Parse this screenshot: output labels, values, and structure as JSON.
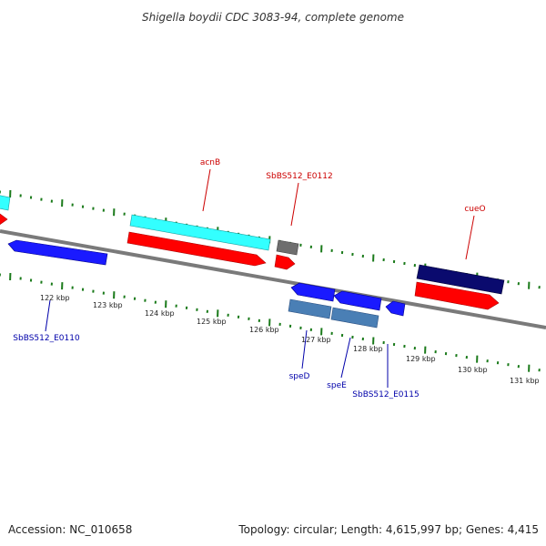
{
  "title": "Shigella boydii CDC 3083-94, complete genome",
  "footer": {
    "accession": "Accession: NC_010658",
    "summary": "Topology: circular; Length: 4,615,997 bp; Genes: 4,415"
  },
  "colors": {
    "backbone": "#808080",
    "tick": "#1a7a1a",
    "label_forward": "#cc0000",
    "label_reverse": "#0000aa",
    "cyan": "#33ffff",
    "red": "#ff0000",
    "blue": "#1a1aff",
    "grey": "#707070",
    "navy": "#0a0a6e",
    "steel": "#4a7fb5"
  },
  "scale": {
    "unit": "kbp",
    "tick_labels": [
      "122 kbp",
      "123 kbp",
      "124 kbp",
      "125 kbp",
      "126 kbp",
      "127 kbp",
      "128 kbp",
      "129 kbp",
      "130 kbp",
      "131 kbp"
    ]
  },
  "labels": {
    "acnB": "acnB",
    "e0112": "SbBS512_E0112",
    "cueO": "cueO",
    "e0110": "SbBS512_E0110",
    "speD": "speD",
    "speE": "speE",
    "e0115": "SbBS512_E0115"
  }
}
